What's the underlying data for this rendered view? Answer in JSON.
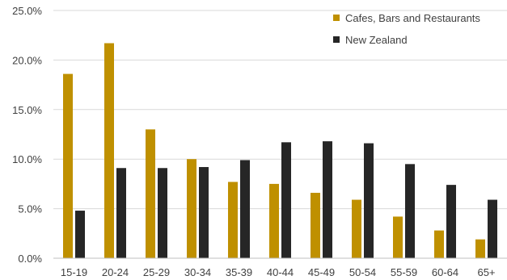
{
  "chart_data": {
    "type": "bar",
    "categories": [
      "15-19",
      "20-24",
      "25-29",
      "30-34",
      "35-39",
      "40-44",
      "45-49",
      "50-54",
      "55-59",
      "60-64",
      "65+"
    ],
    "series": [
      {
        "name": "Cafes, Bars and Restaurants",
        "color": "#bf9000",
        "values": [
          18.6,
          21.7,
          13.0,
          10.0,
          7.7,
          7.5,
          6.6,
          5.9,
          4.2,
          2.8,
          1.9
        ]
      },
      {
        "name": "New Zealand",
        "color": "#262626",
        "values": [
          4.8,
          9.1,
          9.1,
          9.2,
          9.9,
          11.7,
          11.8,
          11.6,
          9.5,
          7.4,
          5.9
        ]
      }
    ],
    "ylim": [
      0,
      25
    ],
    "yticks": [
      "0.0%",
      "5.0%",
      "10.0%",
      "15.0%",
      "20.0%",
      "25.0%"
    ],
    "ytick_values": [
      0,
      5,
      10,
      15,
      20,
      25
    ],
    "grid": true,
    "legend_position": "top-right",
    "title": "",
    "xlabel": "",
    "ylabel": ""
  }
}
